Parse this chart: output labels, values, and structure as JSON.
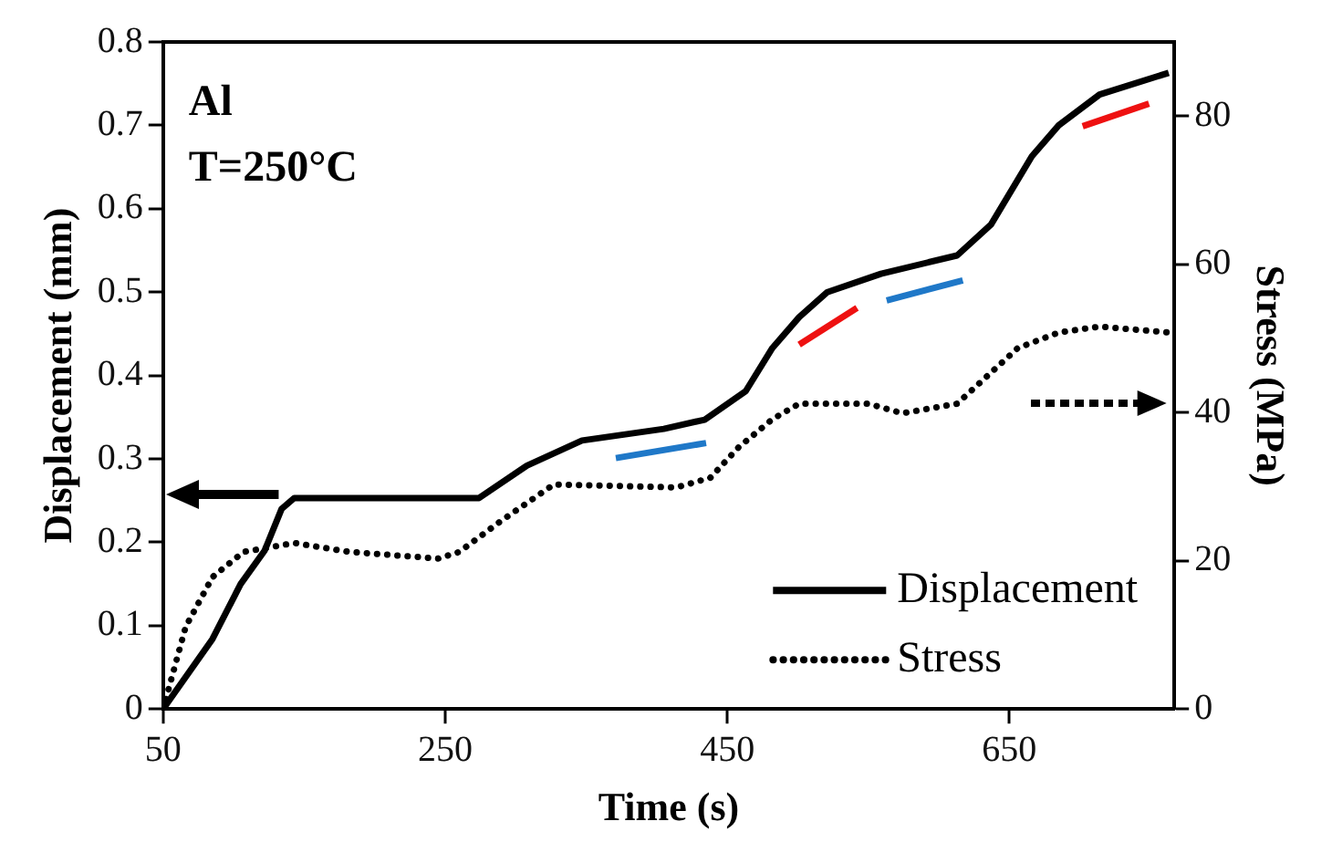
{
  "chart_data": {
    "type": "line",
    "xlabel": "Time (s)",
    "ylabel": "Displacement (mm)",
    "y2label": "Stress (MPa)",
    "annotations": [
      "Al",
      "T=250°C"
    ],
    "xlim": [
      50,
      767
    ],
    "xticks": [
      50,
      250,
      450,
      650
    ],
    "ylim": [
      0,
      0.8
    ],
    "yticks": [
      0,
      0.1,
      0.2,
      0.3,
      0.4,
      0.5,
      0.6,
      0.7,
      0.8
    ],
    "y2lim": [
      0,
      90
    ],
    "y2ticks": [
      0,
      20,
      40,
      60,
      80
    ],
    "grid": false,
    "legend": "bottom right",
    "marker": "none",
    "series": [
      {
        "name": "Displacement",
        "color": "#000000",
        "line_style": "solid",
        "axis": "y",
        "x": [
          50,
          85,
          105,
          122,
          134,
          143,
          274,
          308,
          347,
          405,
          434,
          463,
          482,
          501,
          521,
          559,
          613,
          637,
          666,
          685,
          714,
          763
        ],
        "values": [
          0,
          0.084,
          0.15,
          0.19,
          0.24,
          0.253,
          0.253,
          0.292,
          0.322,
          0.336,
          0.347,
          0.381,
          0.433,
          0.47,
          0.5,
          0.522,
          0.544,
          0.581,
          0.663,
          0.7,
          0.737,
          0.763
        ]
      },
      {
        "name": "Stress",
        "color": "#000000",
        "line_style": "dotted",
        "axis": "y2",
        "x": [
          50,
          66,
          85,
          107,
          143,
          182,
          245,
          260,
          289,
          327,
          414,
          438,
          458,
          482,
          501,
          550,
          574,
          613,
          656,
          685,
          714,
          763
        ],
        "values": [
          0,
          11.1,
          17.8,
          21.2,
          22.4,
          21.2,
          20.3,
          21.2,
          25.3,
          30.3,
          29.9,
          31.2,
          35.3,
          39.1,
          41.2,
          41.2,
          39.9,
          41.2,
          48.7,
          50.8,
          51.6,
          50.8
        ]
      },
      {
        "color": "#1f78c8",
        "line_style": "solid",
        "axis": "y",
        "x": [
          371,
          435
        ],
        "values": [
          0.301,
          0.319
        ]
      },
      {
        "color": "#ee1111",
        "line_style": "solid",
        "axis": "y",
        "x": [
          501,
          542
        ],
        "values": [
          0.437,
          0.481
        ]
      },
      {
        "color": "#1f78c8",
        "line_style": "solid",
        "axis": "y",
        "x": [
          563,
          617
        ],
        "values": [
          0.49,
          0.514
        ]
      },
      {
        "color": "#ee1111",
        "line_style": "solid",
        "axis": "y",
        "x": [
          702,
          749
        ],
        "values": [
          0.699,
          0.726
        ]
      }
    ]
  }
}
